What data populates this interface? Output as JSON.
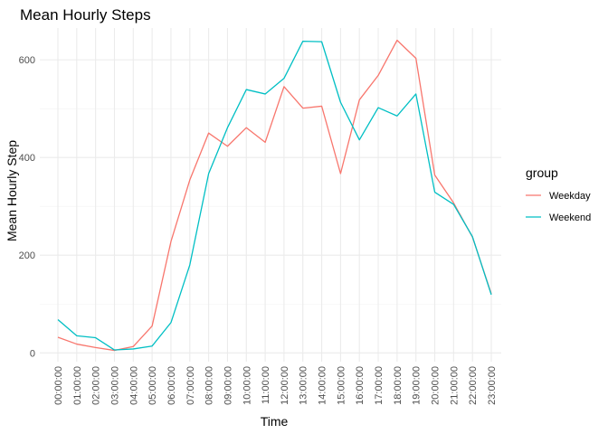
{
  "chart_data": {
    "type": "line",
    "title": "Mean Hourly Steps",
    "xlabel": "Time",
    "ylabel": "Mean Hourly Step",
    "ylim": [
      -18,
      665
    ],
    "yticks": [
      0,
      200,
      400,
      600
    ],
    "grid": true,
    "legend": {
      "title": "group",
      "position": "right"
    },
    "x": [
      "00:00:00",
      "01:00:00",
      "02:00:00",
      "03:00:00",
      "04:00:00",
      "05:00:00",
      "06:00:00",
      "07:00:00",
      "08:00:00",
      "09:00:00",
      "10:00:00",
      "11:00:00",
      "12:00:00",
      "13:00:00",
      "14:00:00",
      "15:00:00",
      "16:00:00",
      "17:00:00",
      "18:00:00",
      "19:00:00",
      "20:00:00",
      "21:00:00",
      "22:00:00",
      "23:00:00"
    ],
    "series": [
      {
        "name": "Weekday",
        "color": "#F8766D",
        "values": [
          32,
          18,
          11,
          5,
          13,
          55,
          228,
          354,
          450,
          423,
          461,
          431,
          545,
          501,
          505,
          367,
          518,
          568,
          640,
          603,
          364,
          307,
          237,
          121
        ]
      },
      {
        "name": "Weekend",
        "color": "#00BFC4",
        "values": [
          68,
          35,
          31,
          6,
          8,
          14,
          62,
          180,
          367,
          461,
          539,
          530,
          562,
          638,
          637,
          513,
          436,
          502,
          485,
          530,
          329,
          304,
          238,
          119
        ]
      }
    ]
  }
}
